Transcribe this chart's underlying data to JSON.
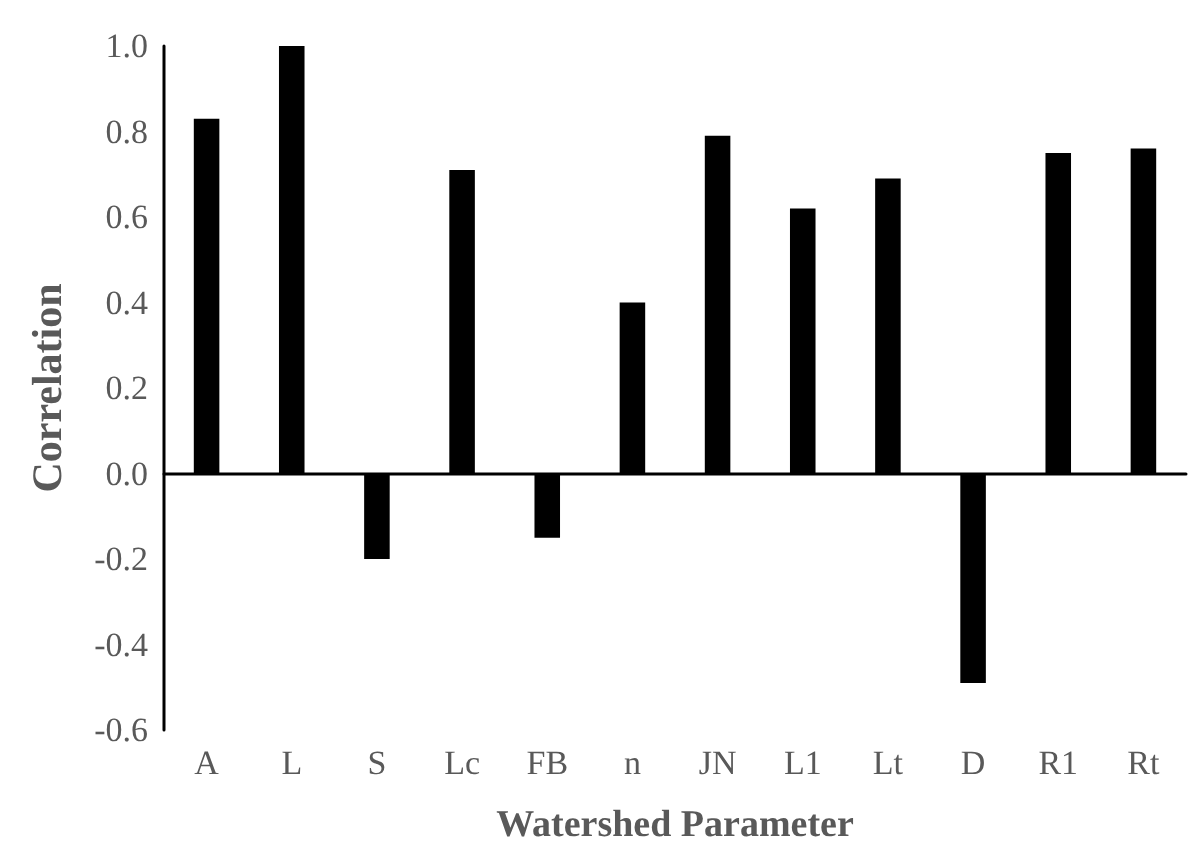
{
  "chart_data": {
    "type": "bar",
    "xlabel": "Watershed Parameter",
    "ylabel": "Correlation",
    "categories": [
      "A",
      "L",
      "S",
      "Lc",
      "FB",
      "n",
      "JN",
      "L1",
      "Lt",
      "D",
      "R1",
      "Rt"
    ],
    "values": [
      0.83,
      1.0,
      -0.2,
      0.71,
      -0.15,
      0.4,
      0.79,
      0.62,
      0.69,
      -0.49,
      0.75,
      0.76
    ],
    "color": "#000000",
    "ylim": [
      -0.6,
      1.0
    ],
    "yticks": [
      -0.6,
      -0.4,
      -0.2,
      {
        "value": 0,
        "label": "0.0"
      },
      0.2,
      0.4,
      0.6,
      0.8,
      {
        "value": 1,
        "label": "1.0"
      }
    ]
  }
}
